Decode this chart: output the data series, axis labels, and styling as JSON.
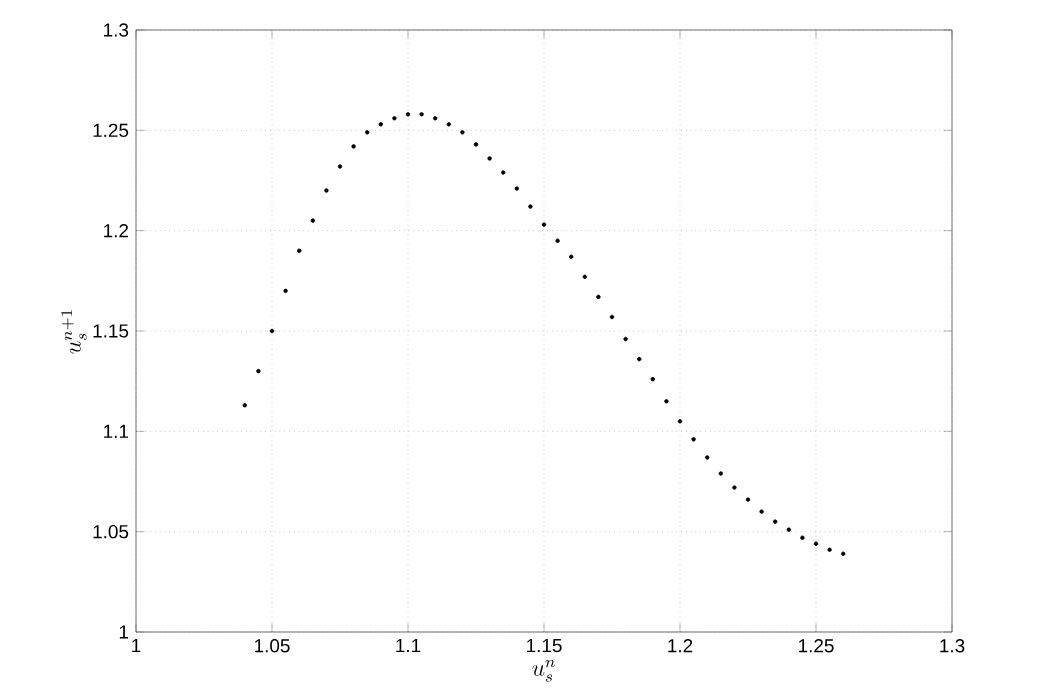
{
  "chart_data": {
    "type": "scatter",
    "xlabel": "u_s^n",
    "ylabel": "u_s^{n+1}",
    "x": [
      1.04,
      1.045,
      1.05,
      1.055,
      1.06,
      1.065,
      1.07,
      1.075,
      1.08,
      1.085,
      1.09,
      1.095,
      1.1,
      1.105,
      1.11,
      1.115,
      1.12,
      1.125,
      1.13,
      1.135,
      1.14,
      1.145,
      1.15,
      1.155,
      1.16,
      1.165,
      1.17,
      1.175,
      1.18,
      1.185,
      1.19,
      1.195,
      1.2,
      1.205,
      1.21,
      1.215,
      1.22,
      1.225,
      1.23,
      1.235,
      1.24,
      1.245,
      1.25,
      1.255,
      1.26
    ],
    "values": [
      1.113,
      1.13,
      1.15,
      1.17,
      1.19,
      1.205,
      1.22,
      1.232,
      1.242,
      1.249,
      1.253,
      1.256,
      1.258,
      1.258,
      1.256,
      1.253,
      1.249,
      1.243,
      1.236,
      1.229,
      1.221,
      1.212,
      1.203,
      1.195,
      1.187,
      1.177,
      1.167,
      1.157,
      1.146,
      1.136,
      1.126,
      1.115,
      1.105,
      1.096,
      1.087,
      1.079,
      1.072,
      1.066,
      1.06,
      1.055,
      1.051,
      1.047,
      1.044,
      1.041,
      1.039
    ],
    "color": "#000000",
    "grid": true,
    "xlim": [
      1,
      1.3
    ],
    "ylim": [
      1,
      1.3
    ],
    "xticks": [
      1,
      1.05,
      1.1,
      1.15,
      1.2,
      1.25,
      1.3
    ],
    "yticks": [
      1,
      1.05,
      1.1,
      1.15,
      1.2,
      1.25,
      1.3
    ]
  }
}
